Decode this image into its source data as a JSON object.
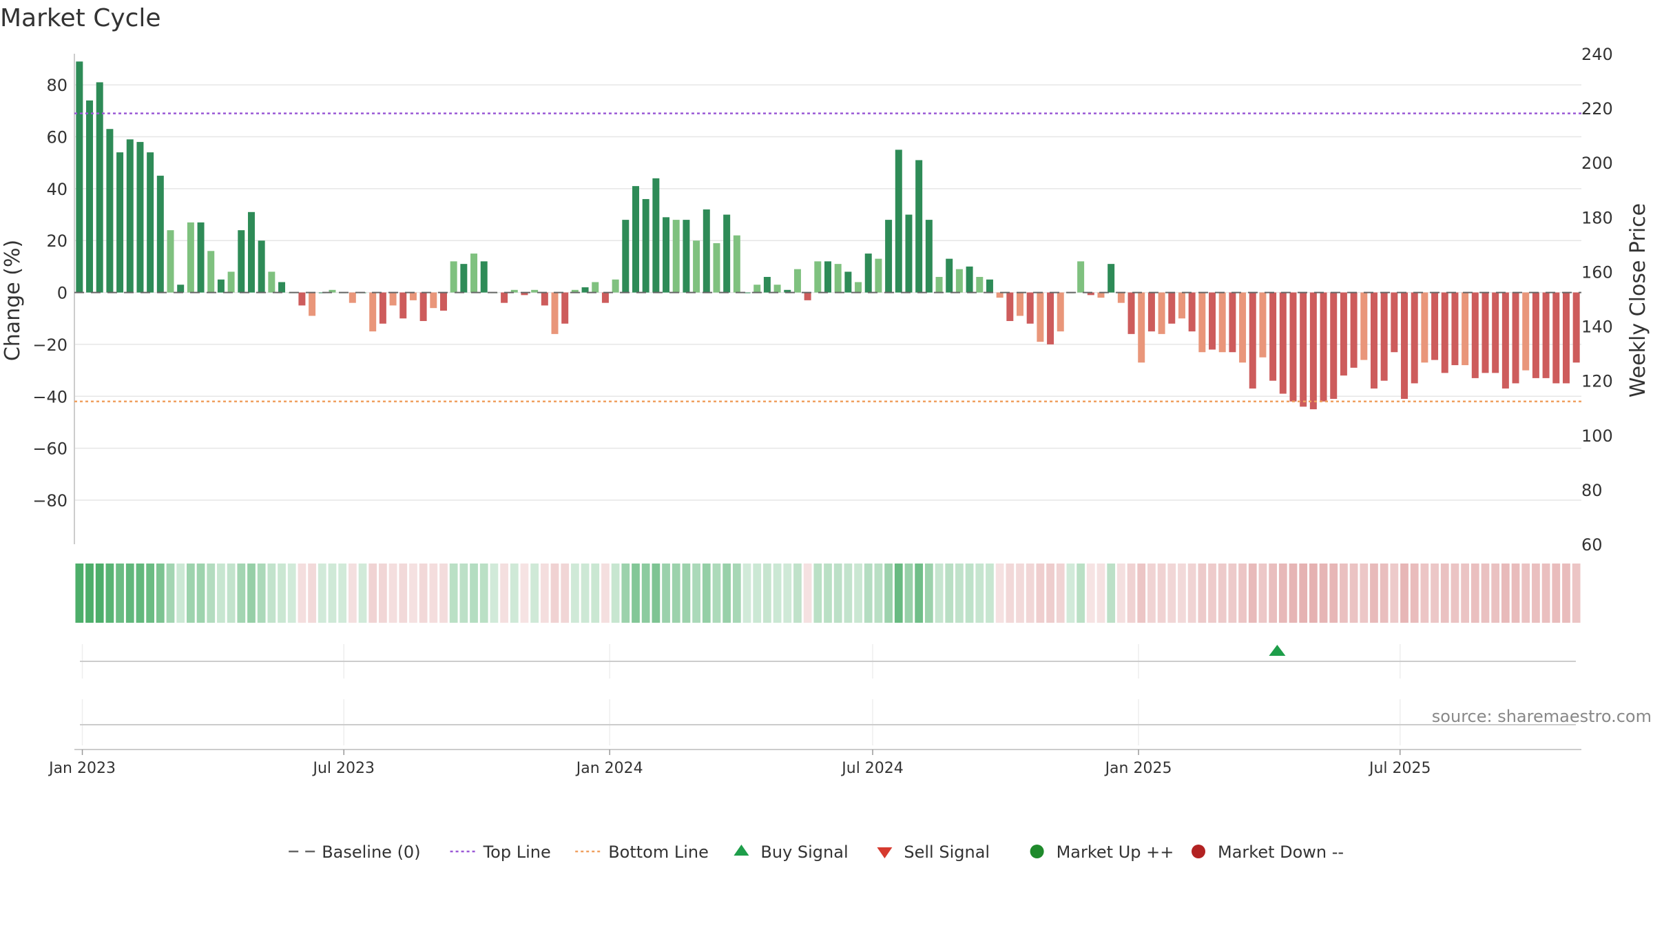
{
  "chart_data": {
    "type": "bar",
    "title": "Market Cycle",
    "ylabel_left": "Change (%)",
    "ylabel_right": "Weekly Close Price",
    "yticks_left": [
      "80",
      "60",
      "40",
      "20",
      "0",
      "−20",
      "−40",
      "−60",
      "−80"
    ],
    "yticks_right": [
      "240",
      "220",
      "200",
      "180",
      "160",
      "140",
      "120",
      "100",
      "80",
      "60"
    ],
    "ylim_left": [
      -97,
      92
    ],
    "ylim_right": [
      60,
      240
    ],
    "x_start": "2022-12-30",
    "x_step_days": 7,
    "xticks": [
      {
        "date": "2023-01-01",
        "label": "Jan 2023"
      },
      {
        "date": "2023-07-01",
        "label": "Jul 2023"
      },
      {
        "date": "2024-01-01",
        "label": "Jan 2024"
      },
      {
        "date": "2024-07-01",
        "label": "Jul 2024"
      },
      {
        "date": "2025-01-01",
        "label": "Jan 2025"
      },
      {
        "date": "2025-07-01",
        "label": "Jul 2025"
      }
    ],
    "top_line": 69,
    "bottom_line": -42,
    "series": [
      {
        "name": "Change (%)",
        "values": [
          89,
          74,
          81,
          63,
          54,
          59,
          58,
          54,
          45,
          24,
          3,
          27,
          27,
          16,
          5,
          8,
          24,
          31,
          20,
          8,
          4,
          0,
          -5,
          -9,
          0,
          1,
          0,
          -4,
          0,
          -15,
          -12,
          -5,
          -10,
          -3,
          -11,
          -6,
          -7,
          12,
          11,
          15,
          12,
          0,
          -4,
          1,
          -1,
          1,
          -5,
          -16,
          -12,
          1,
          2,
          4,
          -4,
          5,
          28,
          41,
          36,
          44,
          29,
          28,
          28,
          20,
          32,
          19,
          30,
          22,
          0,
          3,
          6,
          3,
          1,
          9,
          -3,
          12,
          12,
          11,
          8,
          4,
          15,
          13,
          28,
          55,
          30,
          51,
          28,
          6,
          13,
          9,
          10,
          6,
          5,
          -2,
          -11,
          -9,
          -12,
          -19,
          -20,
          -15,
          0,
          12,
          -1,
          -2,
          11,
          -4,
          -16,
          -27,
          -15,
          -16,
          -12,
          -10,
          -15,
          -23,
          -22,
          -23,
          -23,
          -27,
          -37,
          -25,
          -34,
          -39,
          -42,
          -44,
          -45,
          -42,
          -41,
          -32,
          -29,
          -26,
          -37,
          -34,
          -23,
          -41,
          -35,
          -27,
          -26,
          -31,
          -28,
          -28,
          -33,
          -31,
          -31,
          -37,
          -35,
          -30,
          -33,
          -33,
          -35,
          -35,
          -27
        ]
      }
    ],
    "buy_signals": [
      {
        "date": "2025-04-07"
      }
    ],
    "sell_signals": [],
    "legend": [
      {
        "label": "Baseline (0)",
        "symbol": "dash-line",
        "color": "#666666"
      },
      {
        "label": "Top Line",
        "symbol": "dotted-line",
        "color": "#9b59d6"
      },
      {
        "label": "Bottom Line",
        "symbol": "dotted-line",
        "color": "#f0a060"
      },
      {
        "label": "Buy Signal",
        "symbol": "triangle-up",
        "color": "#1e9e4a"
      },
      {
        "label": "Sell Signal",
        "symbol": "triangle-down",
        "color": "#d63a2f"
      },
      {
        "label": "Market Up ++",
        "symbol": "circle",
        "color": "#1f8a2c"
      },
      {
        "label": "Market Down --",
        "symbol": "circle",
        "color": "#b22222"
      }
    ],
    "source": "source: sharemaestro.com",
    "grid": true,
    "legend_position": "bottom-center"
  }
}
